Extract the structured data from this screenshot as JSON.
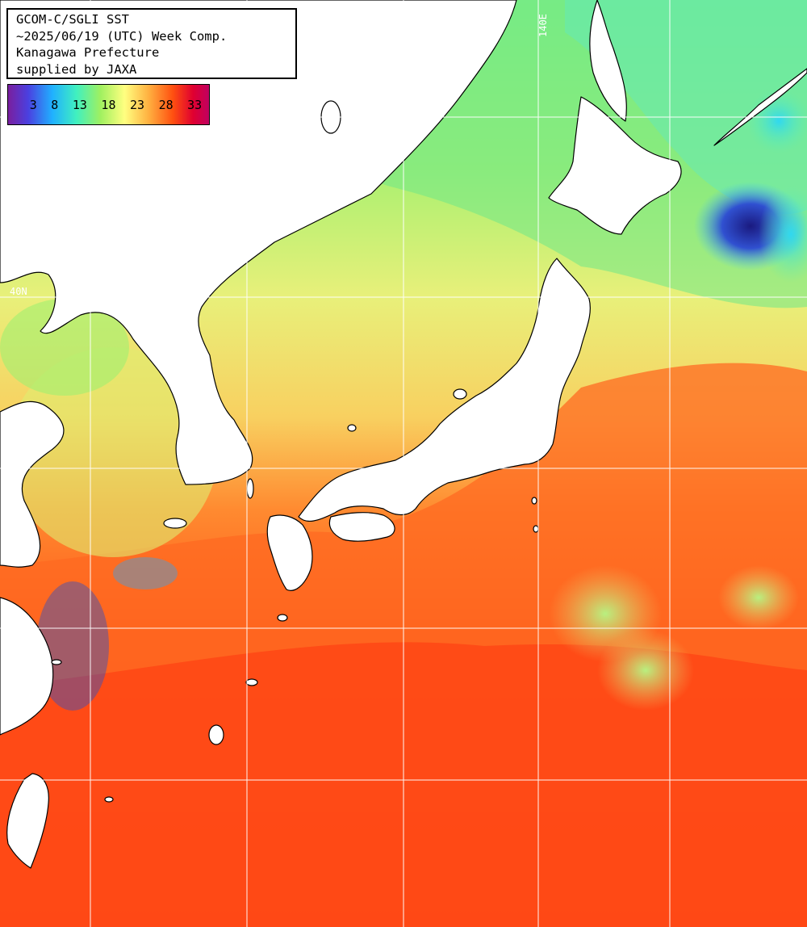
{
  "header": {
    "lines": [
      "GCOM-C/SGLI SST",
      "~2025/06/19 (UTC) Week Comp.",
      "Kanagawa Prefecture",
      "supplied by JAXA"
    ]
  },
  "legend": {
    "ticks": [
      "3",
      "8",
      "13",
      "18",
      "23",
      "28",
      "33"
    ],
    "gradient_colors": [
      "#7a1f9e",
      "#4a40e0",
      "#20b0ff",
      "#40f0c0",
      "#a0f060",
      "#ffff80",
      "#ffb040",
      "#ff5010",
      "#e00030",
      "#c00060"
    ]
  },
  "grid_labels": {
    "lon": "140E",
    "lat": "40N"
  },
  "colors": {
    "land": "#ffffff",
    "coastline": "#000000",
    "gridline": "#ffffff",
    "cold_water": "#70e890",
    "temperate_water": "#e8f080",
    "warm_water": "#ff5a18",
    "very_warm_water": "#ff3a10",
    "cloud_gap": "#3040c0"
  }
}
